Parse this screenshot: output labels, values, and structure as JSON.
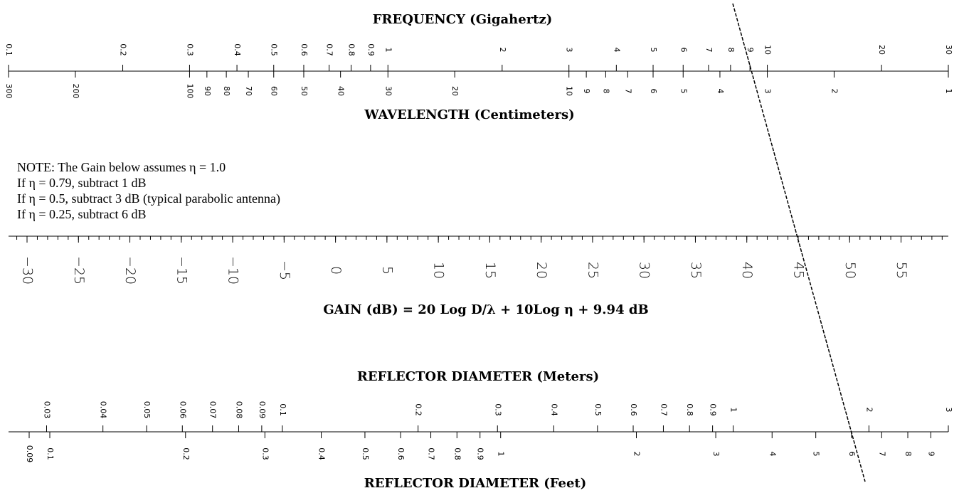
{
  "frequency_scale": {
    "title": "FREQUENCY (Gigahertz)",
    "log": true,
    "lim": [
      0.1,
      30
    ],
    "ticks": [
      0.1,
      0.2,
      0.3,
      0.4,
      0.5,
      0.6,
      0.7,
      0.8,
      0.9,
      1,
      2,
      3,
      4,
      5,
      6,
      7,
      8,
      9,
      10,
      20,
      30
    ]
  },
  "wavelength_scale": {
    "title": "WAVELENGTH (Centimeters)",
    "log": true,
    "lim": [
      300,
      1
    ],
    "ticks": [
      300,
      200,
      100,
      90,
      80,
      70,
      60,
      50,
      40,
      30,
      20,
      10,
      9,
      8,
      7,
      6,
      5,
      4,
      3,
      2,
      1
    ]
  },
  "note": [
    "NOTE: The Gain below assumes η = 1.0",
    "If η  = 0.79, subtract 1 dB",
    "If η  = 0.5, subtract 3 dB (typical parabolic antenna)",
    "If η  = 0.25, subtract 6 dB"
  ],
  "gain_scale": {
    "log": false,
    "lim": [
      -31.8,
      59.6
    ],
    "minor_step": 1,
    "ticks": [
      {
        "value": -30,
        "label": "−30"
      },
      {
        "value": -25,
        "label": "−25"
      },
      {
        "value": -20,
        "label": "−20"
      },
      {
        "value": -15,
        "label": "−15"
      },
      {
        "value": -10,
        "label": "−10"
      },
      {
        "value": -5,
        "label": "−5"
      },
      0,
      5,
      10,
      15,
      20,
      25,
      30,
      35,
      40,
      45,
      50,
      55
    ]
  },
  "gain_formula": "GAIN  (dB) = 20 Log D/λ + 10Log η + 9.94 dB",
  "meters_scale": {
    "title": "REFLECTOR DIAMETER (Meters)",
    "log": true,
    "lim": [
      0.0247,
      3
    ],
    "ticks": [
      0.03,
      0.04,
      0.05,
      0.06,
      0.07,
      0.08,
      0.09,
      0.1,
      0.2,
      0.3,
      0.4,
      0.5,
      0.6,
      0.7,
      0.8,
      0.9,
      1,
      2,
      3
    ]
  },
  "feet_scale": {
    "title": "REFLECTOR DIAMETER (Feet)",
    "log": true,
    "lim": [
      0.081,
      9.84
    ],
    "ticks": [
      0.09,
      0.1,
      0.2,
      0.3,
      0.4,
      0.5,
      0.6,
      0.7,
      0.8,
      0.9,
      1,
      2,
      3,
      4,
      5,
      6,
      7,
      8,
      9
    ]
  }
}
